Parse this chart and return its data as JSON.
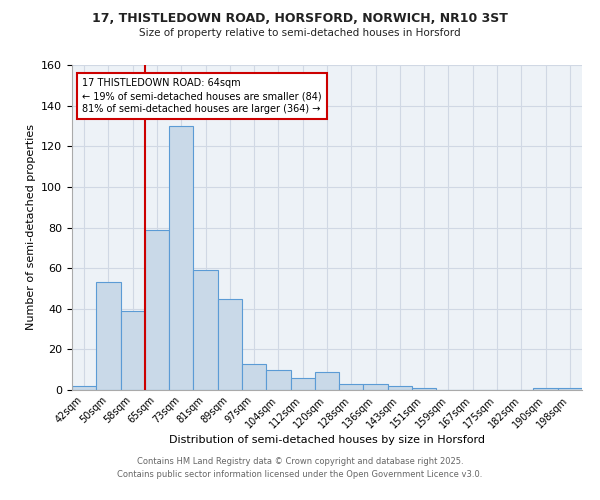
{
  "title1": "17, THISTLEDOWN ROAD, HORSFORD, NORWICH, NR10 3ST",
  "title2": "Size of property relative to semi-detached houses in Horsford",
  "xlabel": "Distribution of semi-detached houses by size in Horsford",
  "ylabel": "Number of semi-detached properties",
  "categories": [
    "42sqm",
    "50sqm",
    "58sqm",
    "65sqm",
    "73sqm",
    "81sqm",
    "89sqm",
    "97sqm",
    "104sqm",
    "112sqm",
    "120sqm",
    "128sqm",
    "136sqm",
    "143sqm",
    "151sqm",
    "159sqm",
    "167sqm",
    "175sqm",
    "182sqm",
    "190sqm",
    "198sqm"
  ],
  "values": [
    2,
    53,
    39,
    79,
    130,
    59,
    45,
    13,
    10,
    6,
    9,
    3,
    3,
    2,
    1,
    0,
    0,
    0,
    0,
    1,
    1
  ],
  "bar_color": "#c9d9e8",
  "bar_edge_color": "#5b9bd5",
  "annotation_title": "17 THISTLEDOWN ROAD: 64sqm",
  "annotation_line1": "← 19% of semi-detached houses are smaller (84)",
  "annotation_line2": "81% of semi-detached houses are larger (364) →",
  "annotation_box_color": "#ffffff",
  "annotation_border_color": "#cc0000",
  "vline_color": "#cc0000",
  "footer1": "Contains HM Land Registry data © Crown copyright and database right 2025.",
  "footer2": "Contains public sector information licensed under the Open Government Licence v3.0.",
  "ylim": [
    0,
    160
  ],
  "yticks": [
    0,
    20,
    40,
    60,
    80,
    100,
    120,
    140,
    160
  ],
  "grid_color": "#d0d8e4",
  "bg_color": "#edf2f7"
}
